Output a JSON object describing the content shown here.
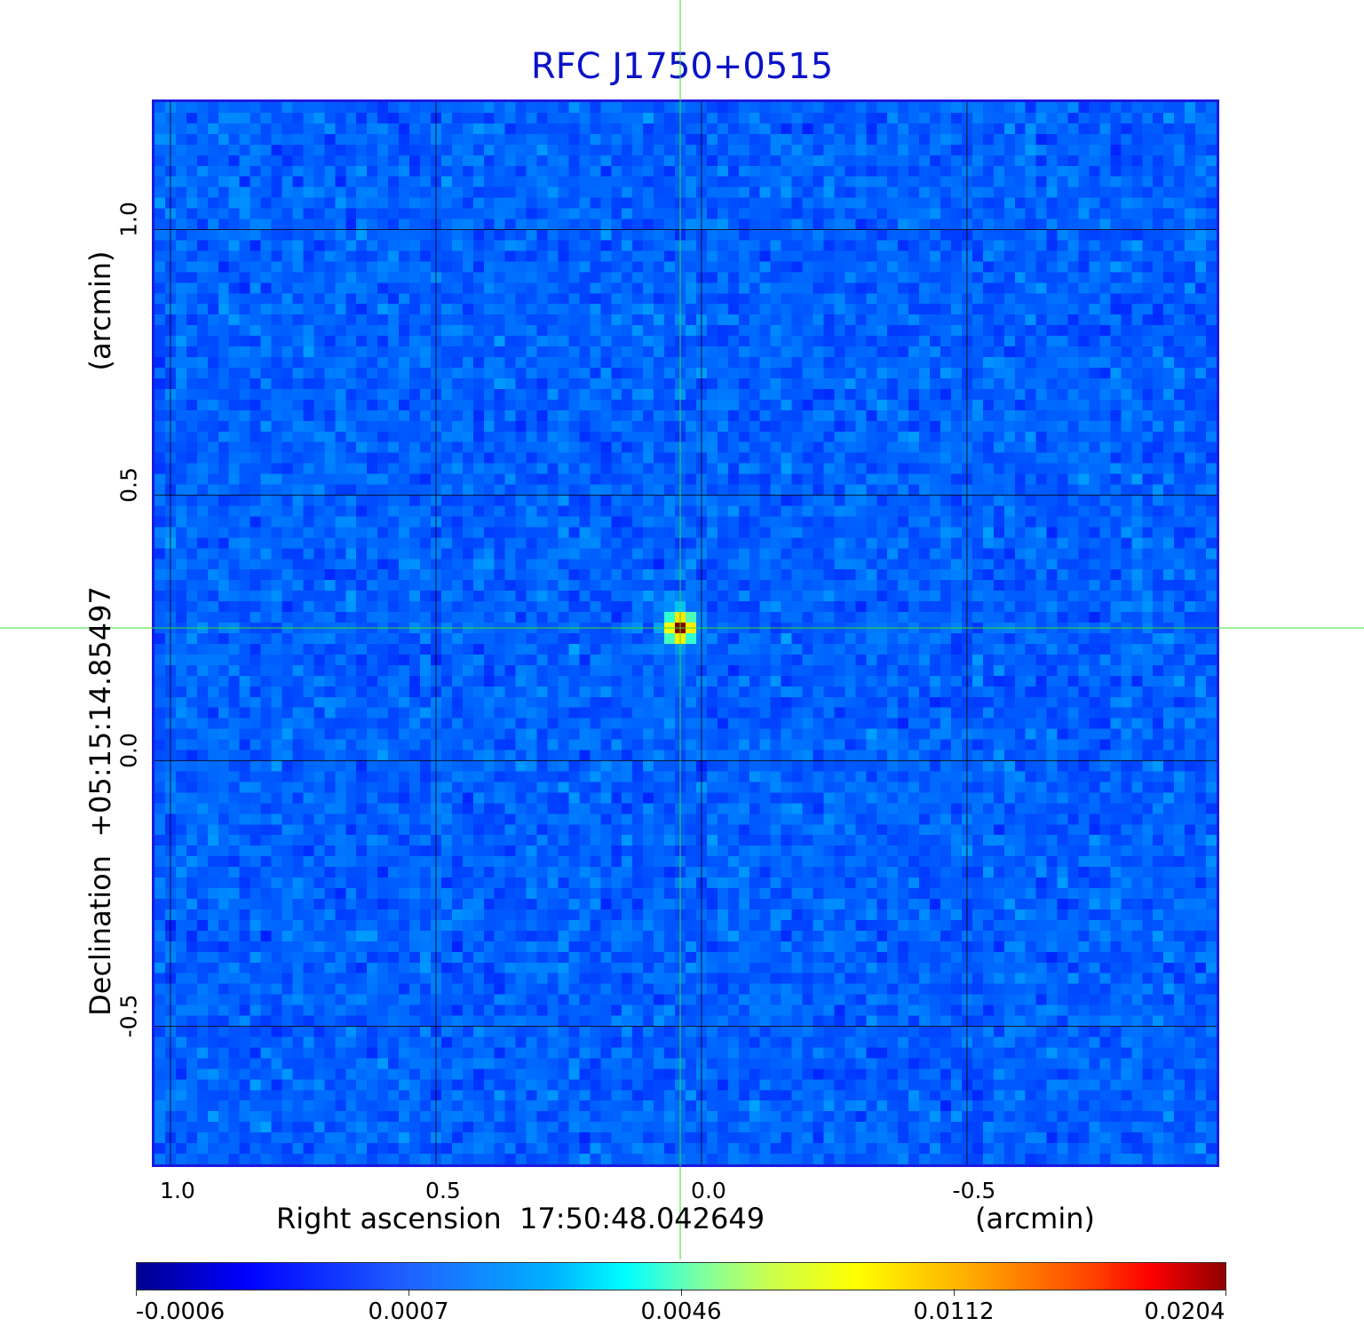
{
  "chart_data": {
    "type": "heatmap",
    "title": "RFC J1750+0515",
    "xlabel": "Right ascension  17:50:48.042649",
    "xunit": "(arcmin)",
    "ylabel": "Declination  +05:15:14.85497",
    "yunit": "(arcmin)",
    "xlim": [
      1.03,
      -0.97
    ],
    "ylim": [
      -0.76,
      1.24
    ],
    "x_ticks": [
      "1.0",
      "0.5",
      "0.0",
      "-0.5"
    ],
    "x_tick_values": [
      1.0,
      0.5,
      0.0,
      -0.5
    ],
    "y_ticks": [
      "-0.5",
      "0.0",
      "0.5",
      "1.0"
    ],
    "y_tick_values": [
      -0.5,
      0.0,
      0.5,
      1.0
    ],
    "grid": true,
    "source": {
      "x": 0.04,
      "y": 0.25,
      "peak": 0.0204
    },
    "crosshair": {
      "x": 0.04,
      "y": 0.25,
      "color": "#33dd33"
    },
    "colorbar": {
      "tick_labels": [
        "-0.0006",
        "0.0007",
        "0.0046",
        "0.0112",
        "0.0204"
      ],
      "colormap": "jet"
    },
    "colors": {
      "title": "#0b12c8",
      "frame": "#1a1ae0",
      "background": "#1f62ff"
    }
  }
}
